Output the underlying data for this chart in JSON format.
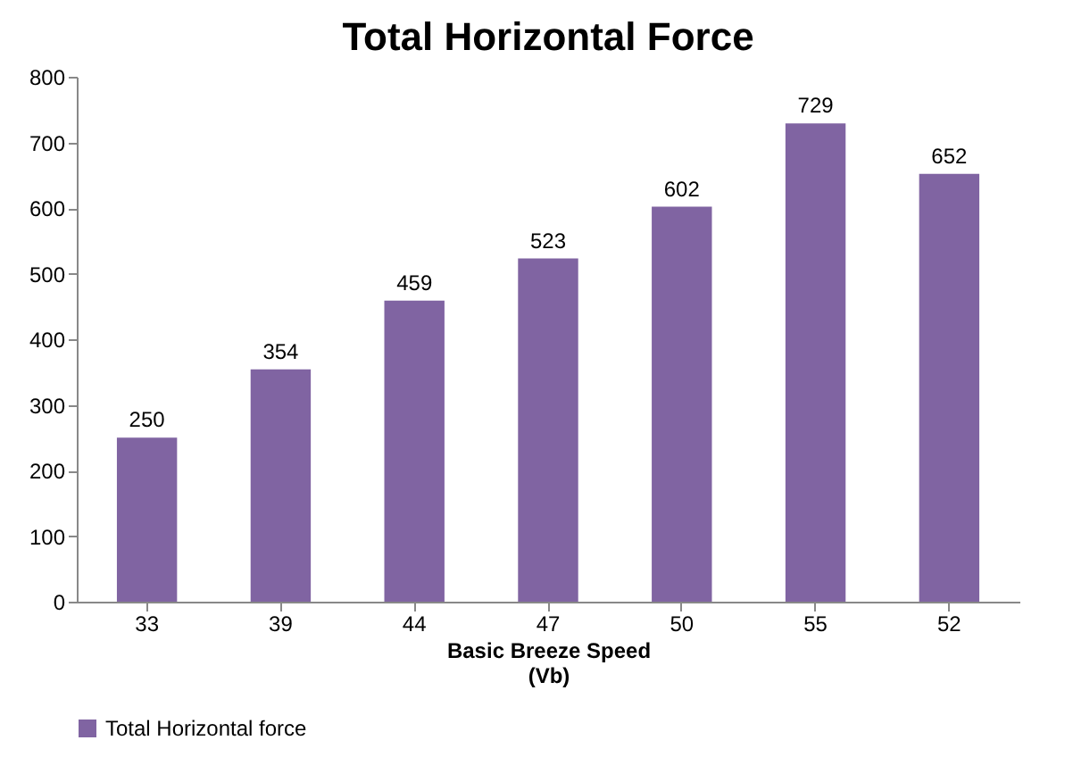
{
  "chart_data": {
    "type": "bar",
    "title": "Total Horizontal Force",
    "xlabel": "Basic Breeze Speed\n(Vb)",
    "categories": [
      "33",
      "39",
      "44",
      "47",
      "50",
      "55",
      "52"
    ],
    "series": [
      {
        "name": "Total Horizontal force",
        "color": "#8064a2",
        "values": [
          250,
          354,
          459,
          523,
          602,
          729,
          652
        ]
      }
    ],
    "ylim": [
      0,
      800
    ],
    "yticks": [
      0,
      100,
      200,
      300,
      400,
      500,
      600,
      700,
      800
    ],
    "grid": false,
    "legend": "bottom",
    "data_labels": true
  }
}
